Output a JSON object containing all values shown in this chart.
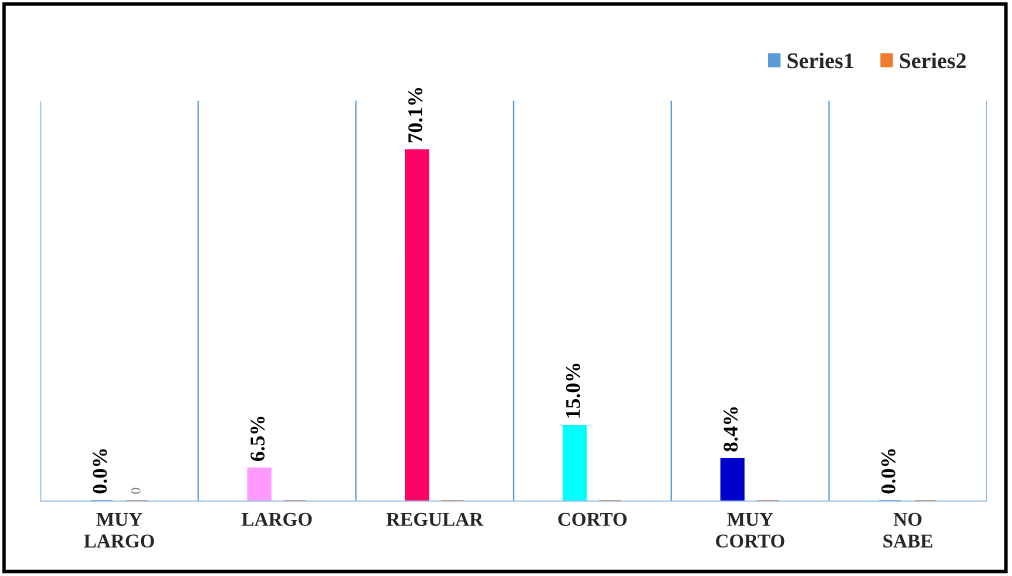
{
  "chart_data": {
    "type": "bar",
    "categories": [
      "MUY LARGO",
      "LARGO",
      "REGULAR",
      "CORTO",
      "MUY CORTO",
      "NO SABE"
    ],
    "series": [
      {
        "name": "Series1",
        "color": "#5b9bd5",
        "colors": [
          "#5b9bd5",
          "#ff99ff",
          "#ff0066",
          "#00ffff",
          "#0000cc",
          "#5b9bd5"
        ],
        "values": [
          0.0,
          6.5,
          70.1,
          15.0,
          8.4,
          0.0
        ],
        "value_labels": [
          "0.0%",
          "6.5%",
          "70.1%",
          "15.0%",
          "8.4%",
          "0.0%"
        ]
      },
      {
        "name": "Series2",
        "color": "#ed7d31",
        "values": [
          0,
          0,
          0,
          0,
          0,
          0
        ],
        "value_labels": [
          "0",
          null,
          null,
          null,
          null,
          null
        ]
      }
    ],
    "ylim": [
      0,
      80
    ],
    "tick_labels": "x",
    "grid": "x",
    "legend": "top right"
  }
}
